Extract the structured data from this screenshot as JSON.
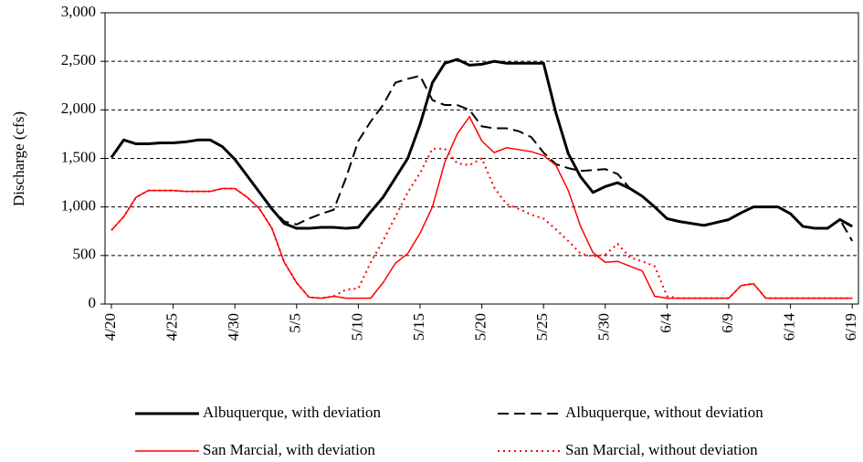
{
  "chart_data": {
    "type": "line",
    "ylabel": "Discharge (cfs)",
    "categories": [
      "4/20",
      null,
      null,
      null,
      null,
      "4/25",
      null,
      null,
      null,
      null,
      "4/30",
      null,
      null,
      null,
      null,
      "5/5",
      null,
      null,
      null,
      null,
      "5/10",
      null,
      null,
      null,
      null,
      "5/15",
      null,
      null,
      null,
      null,
      "5/20",
      null,
      null,
      null,
      null,
      "5/25",
      null,
      null,
      null,
      null,
      "5/30",
      null,
      null,
      null,
      null,
      "6/4",
      null,
      null,
      null,
      null,
      "6/9",
      null,
      null,
      null,
      null,
      "6/14",
      null,
      null,
      null,
      null,
      "6/19"
    ],
    "ylim": [
      0,
      3000
    ],
    "yticks": [
      0,
      500,
      {
        "value": 1000,
        "label": "1,000"
      },
      {
        "value": 1500,
        "label": "1,500"
      },
      {
        "value": 2000,
        "label": "2,000"
      },
      {
        "value": 2500,
        "label": "2,500"
      },
      {
        "value": 3000,
        "label": "3,000"
      }
    ],
    "grid": true,
    "legend": "bottom",
    "series": [
      {
        "name": "Albuquerque, with deviation",
        "color": "#000000",
        "style": "solid",
        "width": 3,
        "values": [
          1510,
          1690,
          1650,
          1650,
          1660,
          1660,
          1670,
          1690,
          1690,
          1620,
          1490,
          1320,
          1150,
          980,
          830,
          780,
          780,
          790,
          790,
          780,
          790,
          950,
          1100,
          1300,
          1500,
          1850,
          2280,
          2480,
          2520,
          2460,
          2470,
          2500,
          2480,
          2480,
          2480,
          2480,
          1970,
          1550,
          1310,
          1150,
          1210,
          1250,
          1190,
          1110,
          1000,
          880,
          850,
          830,
          810,
          840,
          870,
          940,
          1000,
          1000,
          1000,
          930,
          800,
          780,
          780,
          870,
          800
        ]
      },
      {
        "name": "Albuquerque, without deviation",
        "color": "#000000",
        "style": "dashed",
        "width": 2,
        "values": [
          1510,
          1690,
          1650,
          1650,
          1660,
          1660,
          1670,
          1690,
          1690,
          1620,
          1490,
          1320,
          1150,
          980,
          850,
          820,
          880,
          930,
          970,
          1300,
          1680,
          1880,
          2050,
          2280,
          2320,
          2350,
          2100,
          2050,
          2050,
          2000,
          1830,
          1810,
          1810,
          1780,
          1720,
          1560,
          1440,
          1400,
          1370,
          1380,
          1390,
          1340,
          1190,
          1110,
          1000,
          880,
          850,
          830,
          810,
          840,
          870,
          940,
          1000,
          1000,
          1000,
          930,
          800,
          780,
          780,
          870,
          650
        ]
      },
      {
        "name": "San Marcial, with deviation",
        "color": "#ff0000",
        "style": "solid",
        "width": 1.5,
        "values": [
          760,
          900,
          1100,
          1170,
          1170,
          1170,
          1160,
          1160,
          1160,
          1190,
          1190,
          1100,
          980,
          780,
          430,
          220,
          70,
          60,
          80,
          60,
          60,
          60,
          220,
          420,
          520,
          730,
          1000,
          1460,
          1750,
          1930,
          1680,
          1560,
          1610,
          1590,
          1570,
          1530,
          1430,
          1170,
          800,
          530,
          430,
          440,
          390,
          340,
          80,
          60,
          60,
          60,
          60,
          60,
          60,
          190,
          210,
          60,
          60,
          60,
          60,
          60,
          60,
          60,
          60
        ]
      },
      {
        "name": "San Marcial, without deviation",
        "color": "#ff0000",
        "style": "dotted",
        "width": 2,
        "values": [
          760,
          900,
          1100,
          1170,
          1170,
          1170,
          1160,
          1160,
          1160,
          1190,
          1190,
          1100,
          980,
          780,
          430,
          220,
          70,
          60,
          80,
          150,
          160,
          430,
          650,
          900,
          1150,
          1350,
          1600,
          1600,
          1450,
          1430,
          1500,
          1200,
          1030,
          980,
          920,
          880,
          770,
          650,
          520,
          490,
          510,
          620,
          480,
          440,
          390,
          80,
          60,
          60,
          60,
          60,
          60,
          190,
          210,
          60,
          60,
          60,
          60,
          60,
          60,
          60,
          60
        ]
      }
    ]
  }
}
